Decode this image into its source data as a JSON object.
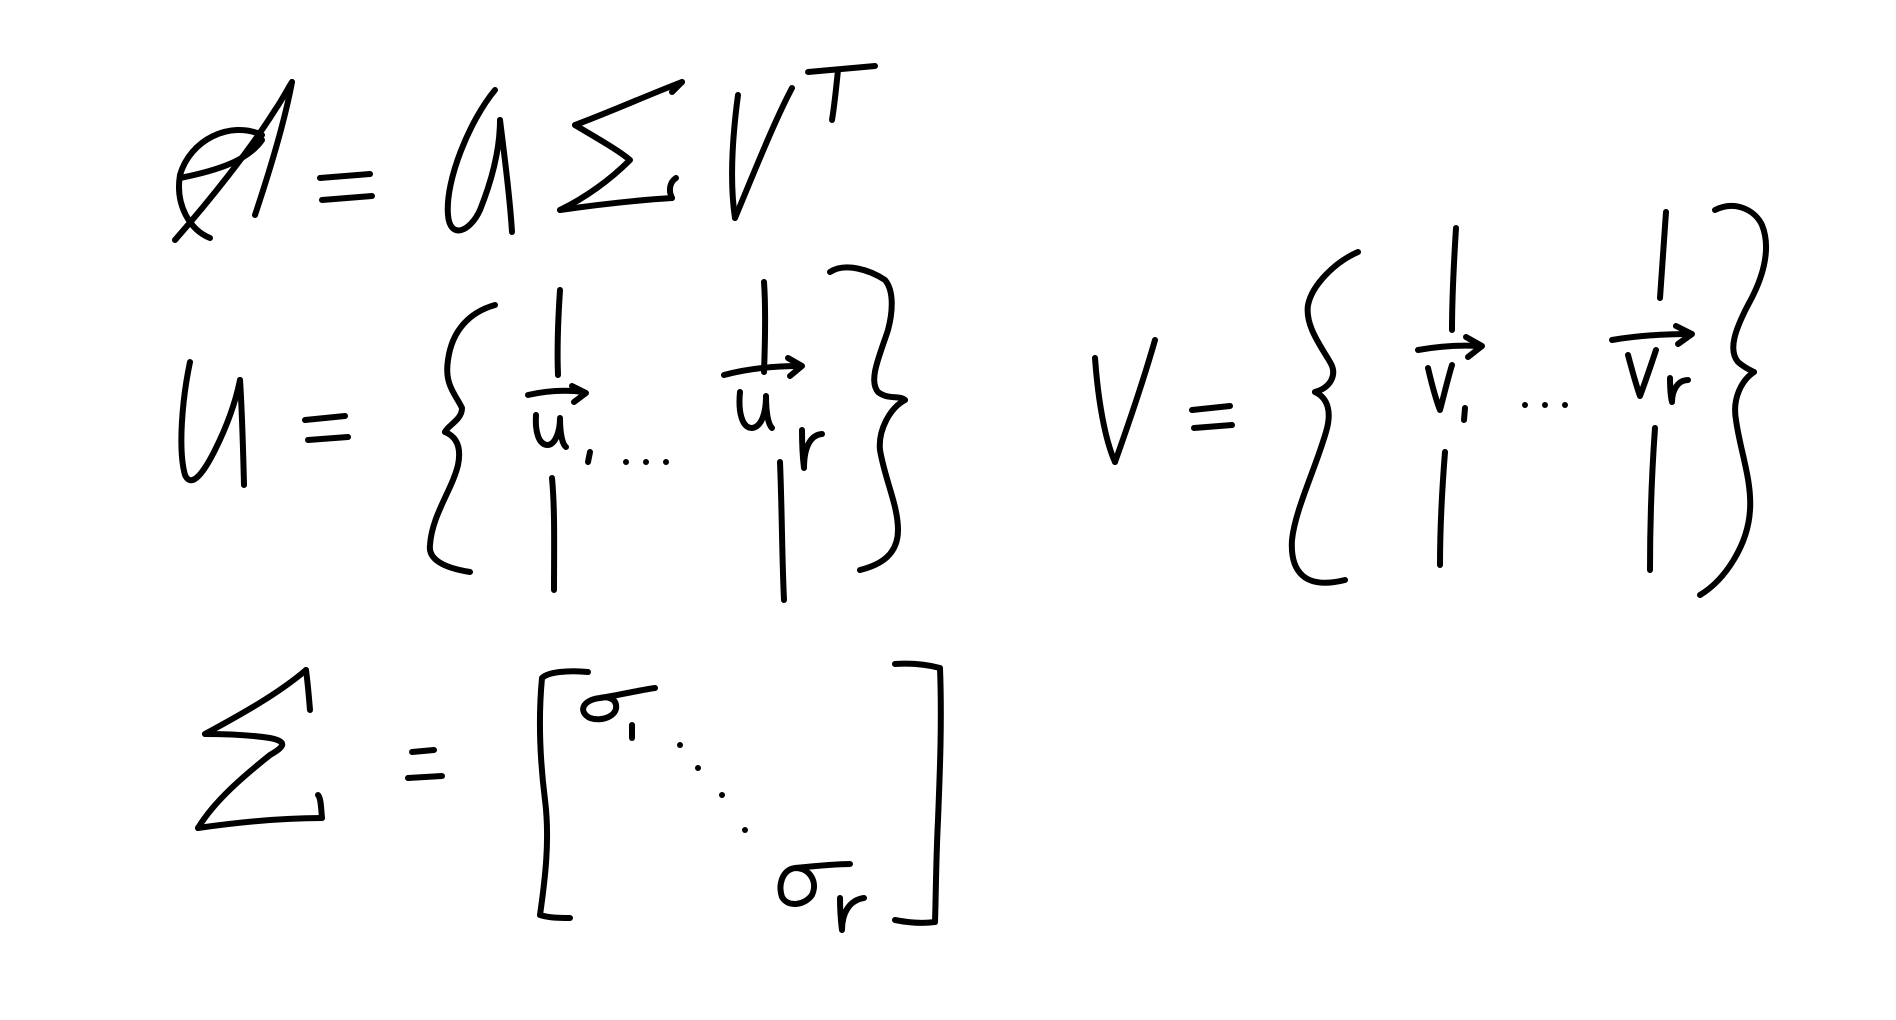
{
  "board": {
    "background": "#ffffff",
    "ink_color": "#000000",
    "content_type": "handwritten-math-notes"
  },
  "equations": {
    "svd": {
      "lhs": "A",
      "operator": "=",
      "rhs": "UΣV^T"
    },
    "u_def": {
      "lhs": "U",
      "operator": "=",
      "columns": [
        "u_1",
        "u_r"
      ],
      "ellipsis": "..."
    },
    "v_def": {
      "lhs": "V",
      "operator": "=",
      "columns": [
        "v_1",
        "v_r"
      ],
      "ellipsis": "..."
    },
    "sigma_def": {
      "lhs": "Σ",
      "operator": "=",
      "diagonal": [
        "σ_1",
        "σ_r"
      ]
    }
  }
}
